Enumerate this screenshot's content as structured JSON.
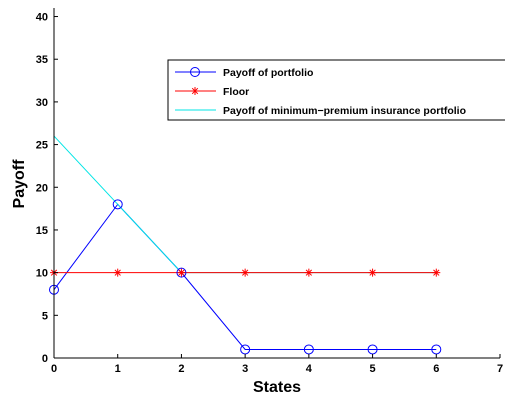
{
  "chart_data": {
    "type": "line",
    "xlabel": "States",
    "ylabel": "Payoff",
    "xlim": [
      0,
      7
    ],
    "ylim": [
      0,
      41
    ],
    "xticks": [
      0,
      1,
      2,
      3,
      4,
      5,
      6,
      7
    ],
    "yticks": [
      0,
      5,
      10,
      15,
      20,
      25,
      30,
      35,
      40
    ],
    "grid": false,
    "legend_position": "top-right",
    "series": [
      {
        "name": "Payoff of portfolio",
        "color": "#0000ff",
        "marker": "circle",
        "x": [
          0,
          1,
          2,
          3,
          4,
          5,
          6
        ],
        "values": [
          8,
          18,
          10,
          1,
          1,
          1,
          1
        ]
      },
      {
        "name": "Floor",
        "color": "#ff0000",
        "marker": "asterisk",
        "x": [
          0,
          1,
          2,
          3,
          4,
          5,
          6
        ],
        "values": [
          10,
          10,
          10,
          10,
          10,
          10,
          10
        ]
      },
      {
        "name": "Payoff of minimum−premium insurance portfolio",
        "color": "#00e5e5",
        "marker": "none",
        "x": [
          0,
          1,
          2,
          3,
          4,
          5,
          6
        ],
        "values": [
          26,
          18,
          10,
          10,
          10,
          10,
          10
        ]
      }
    ]
  }
}
